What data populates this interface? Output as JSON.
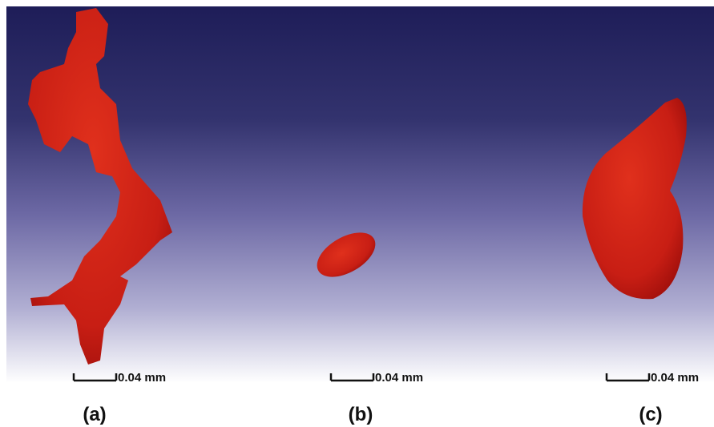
{
  "panels": [
    {
      "scale_label": "0.04 mm",
      "label": "(a)"
    },
    {
      "scale_label": "0.04 mm",
      "label": "(b)"
    },
    {
      "scale_label": "0.04 mm",
      "label": "(c)"
    }
  ]
}
